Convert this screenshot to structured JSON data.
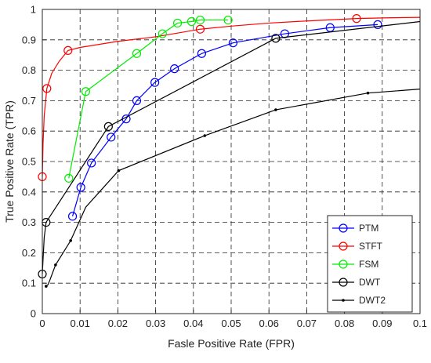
{
  "chart_data": {
    "type": "line",
    "xlabel": "Fasle Positive Rate (FPR)",
    "ylabel": "True Positive Rate (TPR)",
    "xlim": [
      0,
      0.1
    ],
    "ylim": [
      0,
      1
    ],
    "x_ticks": [
      0,
      0.01,
      0.02,
      0.03,
      0.04,
      0.05,
      0.06,
      0.07,
      0.08,
      0.09,
      0.1
    ],
    "x_tick_labels": [
      "0",
      "0.01",
      "0.02",
      "0.03",
      "0.04",
      "0.05",
      "0.06",
      "0.07",
      "0.08",
      "0.09",
      "0.1"
    ],
    "y_ticks": [
      0,
      0.1,
      0.2,
      0.3,
      0.4,
      0.5,
      0.6,
      0.7,
      0.8,
      0.9,
      1
    ],
    "y_tick_labels": [
      "0",
      "0.1",
      "0.2",
      "0.3",
      "0.4",
      "0.5",
      "0.6",
      "0.7",
      "0.8",
      "0.9",
      "1"
    ],
    "grid": true,
    "grid_style": "dashed",
    "legend_position": "bottom-right",
    "series": [
      {
        "name": "PTM",
        "color": "#0000ff",
        "marker": "circle",
        "x": [
          0.008,
          0.0102,
          0.013,
          0.0182,
          0.0222,
          0.025,
          0.0298,
          0.035,
          0.0422,
          0.0505,
          0.0642,
          0.0762,
          0.0888
        ],
        "y": [
          0.32,
          0.415,
          0.495,
          0.58,
          0.64,
          0.7,
          0.76,
          0.805,
          0.855,
          0.89,
          0.92,
          0.94,
          0.95
        ]
      },
      {
        "name": "STFT",
        "color": "#ff0000",
        "marker": "circle",
        "x": [
          0.0,
          0.0002,
          0.0005,
          0.0012,
          0.0025,
          0.0045,
          0.0068,
          0.01,
          0.02,
          0.03,
          0.0418,
          0.05,
          0.06,
          0.07,
          0.0832,
          0.09,
          0.1
        ],
        "y": [
          0.45,
          0.56,
          0.65,
          0.74,
          0.79,
          0.83,
          0.865,
          0.875,
          0.895,
          0.91,
          0.935,
          0.945,
          0.955,
          0.962,
          0.97,
          0.972,
          0.974
        ],
        "markers_at": [
          0.0,
          0.0012,
          0.0068,
          0.0418,
          0.0832
        ]
      },
      {
        "name": "FSM",
        "color": "#00ee00",
        "marker": "circle",
        "x": [
          0.007,
          0.0115,
          0.025,
          0.0318,
          0.0358,
          0.0395,
          0.0418,
          0.0492
        ],
        "y": [
          0.445,
          0.73,
          0.855,
          0.92,
          0.955,
          0.96,
          0.965,
          0.965
        ]
      },
      {
        "name": "DWT",
        "color": "#000000",
        "marker": "circle",
        "x": [
          0.0,
          0.0002,
          0.0005,
          0.001,
          0.0175,
          0.0618,
          0.1
        ],
        "y": [
          0.13,
          0.18,
          0.25,
          0.3,
          0.615,
          0.905,
          0.96
        ],
        "markers_at": [
          0.0,
          0.001,
          0.0175,
          0.0618
        ]
      },
      {
        "name": "DWT2",
        "color": "#000000",
        "marker": "dot",
        "x": [
          0.001,
          0.0015,
          0.002,
          0.0035,
          0.0055,
          0.0075,
          0.0115,
          0.0202,
          0.043,
          0.0618,
          0.0862,
          0.1
        ],
        "y": [
          0.09,
          0.095,
          0.11,
          0.16,
          0.2,
          0.24,
          0.35,
          0.47,
          0.585,
          0.67,
          0.725,
          0.738
        ],
        "markers_at": [
          0.001,
          0.0035,
          0.0075,
          0.0202,
          0.043,
          0.0618,
          0.0862
        ]
      }
    ]
  }
}
